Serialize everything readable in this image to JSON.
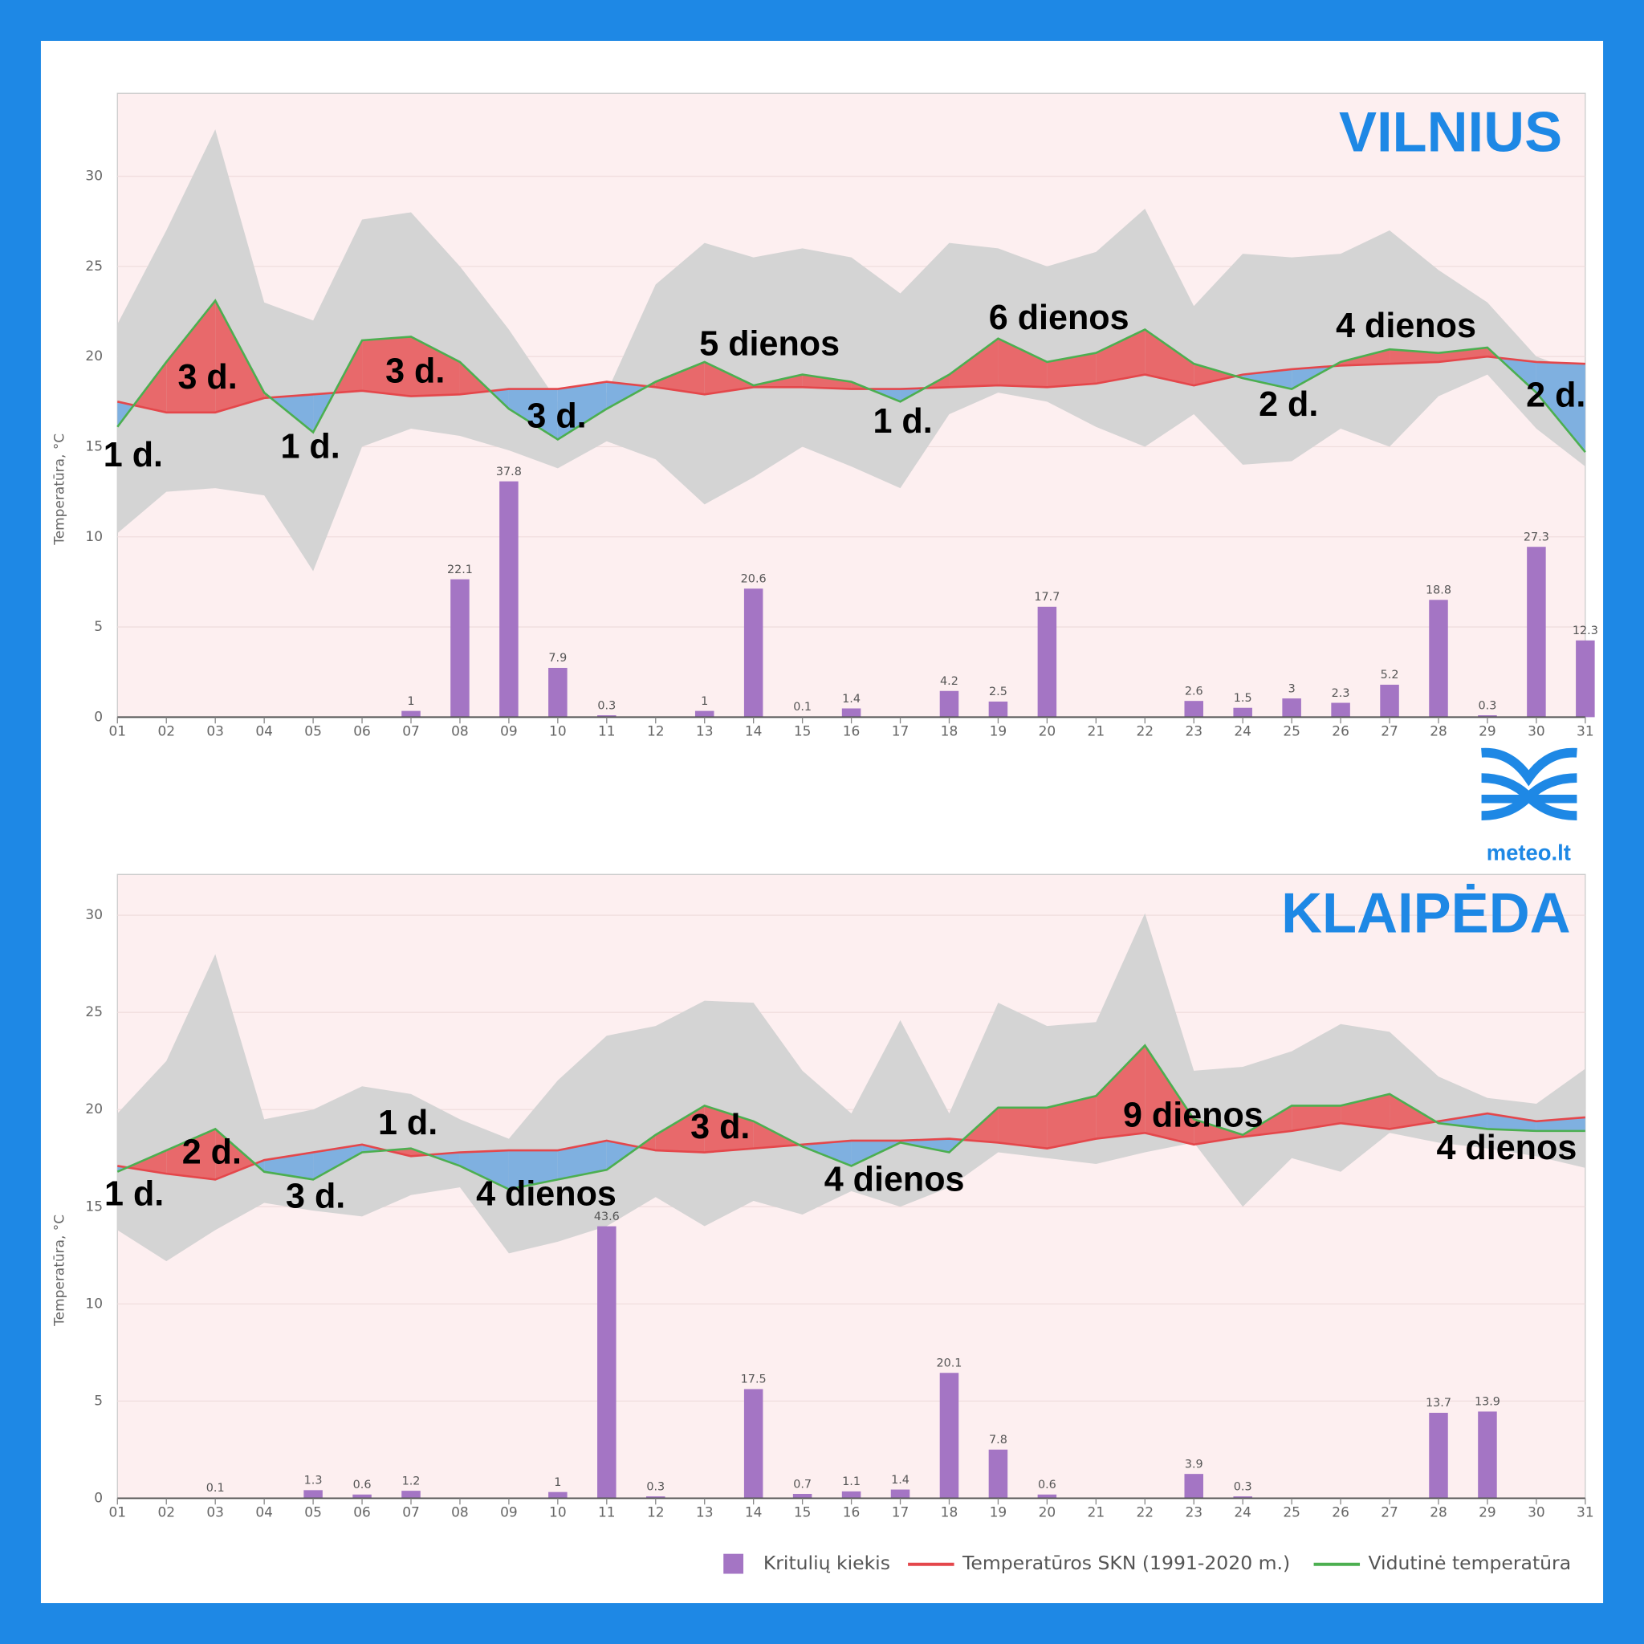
{
  "chart_data": [
    {
      "type": "combo",
      "title": "VILNIUS",
      "y_axis_label": "Temperatūra, °C",
      "categories": [
        "01",
        "02",
        "03",
        "04",
        "05",
        "06",
        "07",
        "08",
        "09",
        "10",
        "11",
        "12",
        "13",
        "14",
        "15",
        "16",
        "17",
        "18",
        "19",
        "20",
        "21",
        "22",
        "23",
        "24",
        "25",
        "26",
        "27",
        "28",
        "29",
        "30",
        "31"
      ],
      "ylim": [
        0,
        34.6
      ],
      "yticks": [
        0,
        5,
        10,
        15,
        20,
        25,
        30
      ],
      "y2lim": [
        0,
        100
      ],
      "grid": true,
      "range_band": {
        "color": "#d4d4d4",
        "high": [
          21.8,
          27,
          32.6,
          23,
          22,
          27.6,
          28,
          25,
          21.5,
          17.5,
          18,
          24,
          26.3,
          25.5,
          26,
          25.5,
          23.5,
          26.3,
          26,
          25,
          25.8,
          28.2,
          22.8,
          25.7,
          25.5,
          25.7,
          27,
          24.8,
          23,
          20,
          19
        ],
        "low": [
          10.2,
          12.5,
          12.7,
          12.3,
          8.1,
          15,
          16,
          15.6,
          14.8,
          13.8,
          15.3,
          14.3,
          11.8,
          13.3,
          15,
          13.9,
          12.7,
          16.8,
          18,
          17.5,
          16.1,
          15,
          16.8,
          14,
          14.2,
          16,
          15,
          17.8,
          19,
          16,
          13.9
        ]
      },
      "fill_above": "#e8696b",
      "fill_below": "#7fb0e0",
      "series": [
        {
          "type": "bar",
          "axis": "y2",
          "color": "#a475c4",
          "values": [
            null,
            null,
            null,
            null,
            null,
            null,
            1,
            22.1,
            37.8,
            7.9,
            0.3,
            null,
            1,
            20.6,
            0.1,
            1.4,
            null,
            4.2,
            2.5,
            17.7,
            null,
            null,
            2.6,
            1.5,
            3,
            2.3,
            5.2,
            18.8,
            0.3,
            27.3,
            12.3
          ]
        },
        {
          "type": "line",
          "color": "#e4474b",
          "values": [
            17.5,
            16.9,
            16.9,
            17.7,
            17.9,
            18.1,
            17.8,
            17.9,
            18.2,
            18.2,
            18.6,
            18.3,
            17.9,
            18.3,
            18.3,
            18.2,
            18.2,
            18.3,
            18.4,
            18.3,
            18.5,
            19.0,
            18.4,
            19.0,
            19.3,
            19.5,
            19.6,
            19.7,
            20.0,
            19.7,
            19.6
          ]
        },
        {
          "type": "line",
          "color": "#4caf50",
          "values": [
            16.1,
            19.7,
            23.1,
            18.0,
            15.8,
            20.9,
            21.1,
            19.7,
            17.1,
            15.4,
            17.1,
            18.6,
            19.7,
            18.4,
            19.0,
            18.6,
            17.5,
            19.0,
            21.0,
            19.7,
            20.2,
            21.5,
            19.6,
            18.8,
            18.2,
            19.7,
            20.4,
            20.2,
            20.5,
            18.0,
            14.7
          ]
        }
      ],
      "annotations": [
        "1 d.",
        "3 d.",
        "1 d.",
        "3 d.",
        "3 d.",
        "5 dienos",
        "1 d.",
        "6 dienos",
        "2 d.",
        "4 dienos",
        "2 d."
      ]
    },
    {
      "type": "combo",
      "title": "KLAIPĖDA",
      "y_axis_label": "Temperatūra, °C",
      "categories": [
        "01",
        "02",
        "03",
        "04",
        "05",
        "06",
        "07",
        "08",
        "09",
        "10",
        "11",
        "12",
        "13",
        "14",
        "15",
        "16",
        "17",
        "18",
        "19",
        "20",
        "21",
        "22",
        "23",
        "24",
        "25",
        "26",
        "27",
        "28",
        "29",
        "30",
        "31"
      ],
      "ylim": [
        0,
        32.1
      ],
      "yticks": [
        0,
        5,
        10,
        15,
        20,
        25,
        30
      ],
      "y2lim": [
        0,
        100
      ],
      "grid": true,
      "range_band": {
        "color": "#d4d4d4",
        "high": [
          19.8,
          22.5,
          28,
          19.5,
          20,
          21.2,
          20.8,
          19.5,
          18.5,
          21.5,
          23.8,
          24.3,
          25.6,
          25.5,
          22,
          19.8,
          24.6,
          19.8,
          25.5,
          24.3,
          24.5,
          30.1,
          22,
          22.2,
          23,
          24.4,
          24,
          21.7,
          20.6,
          20.3,
          22.1
        ],
        "low": [
          13.8,
          12.2,
          13.8,
          15.2,
          14.8,
          14.5,
          15.6,
          16,
          12.6,
          13.2,
          14,
          15.5,
          14,
          15.3,
          14.6,
          15.8,
          15,
          16,
          17.8,
          17.5,
          17.2,
          17.8,
          18.3,
          15,
          17.5,
          16.8,
          18.8,
          18.3,
          18,
          17.6,
          17
        ]
      },
      "fill_above": "#e8696b",
      "fill_below": "#7fb0e0",
      "series": [
        {
          "name": "Kritulių kiekis",
          "type": "bar",
          "axis": "y2",
          "color": "#a475c4",
          "values": [
            null,
            null,
            0.1,
            null,
            1.3,
            0.6,
            1.2,
            null,
            null,
            1,
            43.6,
            0.3,
            null,
            17.5,
            0.7,
            1.1,
            1.4,
            20.1,
            7.8,
            0.6,
            null,
            null,
            3.9,
            0.3,
            null,
            null,
            null,
            13.7,
            13.9,
            null,
            null
          ]
        },
        {
          "name": "Temperatūros SKN (1991-2020 m.)",
          "type": "line",
          "color": "#e4474b",
          "values": [
            17.1,
            16.7,
            16.4,
            17.4,
            17.8,
            18.2,
            17.6,
            17.8,
            17.9,
            17.9,
            18.4,
            17.9,
            17.8,
            18.0,
            18.2,
            18.4,
            18.4,
            18.5,
            18.3,
            18.0,
            18.5,
            18.8,
            18.2,
            18.6,
            18.9,
            19.3,
            19.0,
            19.4,
            19.8,
            19.4,
            19.6
          ]
        },
        {
          "name": "Vidutinė temperatūra",
          "type": "line",
          "color": "#4caf50",
          "values": [
            16.8,
            17.9,
            19.0,
            16.8,
            16.4,
            17.8,
            18.0,
            17.1,
            15.9,
            16.4,
            16.9,
            18.7,
            20.2,
            19.4,
            18.1,
            17.1,
            18.3,
            17.8,
            20.1,
            20.1,
            20.7,
            23.3,
            19.5,
            18.7,
            20.2,
            20.2,
            20.8,
            19.3,
            19.0,
            18.9,
            18.9
          ]
        }
      ],
      "annotations": [
        "1 d.",
        "2 d.",
        "3 d.",
        "1 d.",
        "4 dienos",
        "3 d.",
        "4 dienos",
        "9 dienos",
        "4 dienos"
      ]
    }
  ],
  "logo": "meteo.lt"
}
